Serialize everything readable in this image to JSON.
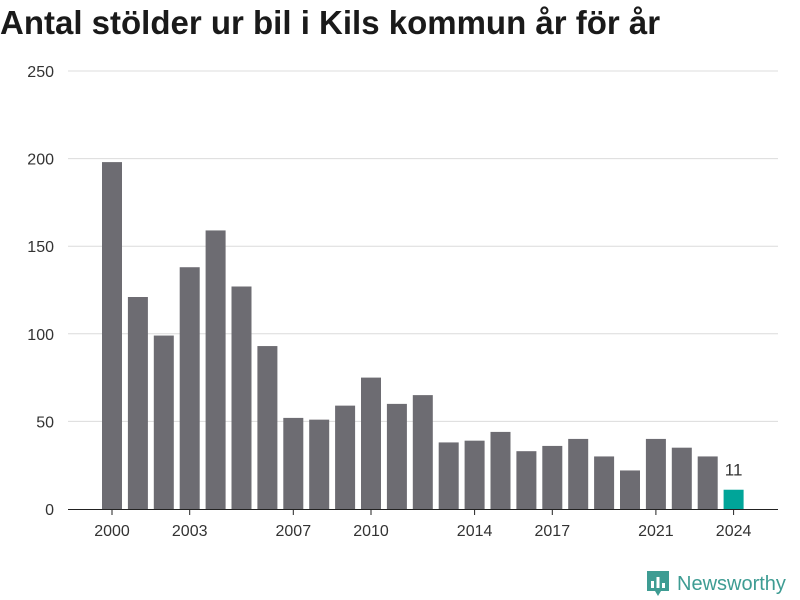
{
  "title": "Antal stölder ur bil i Kils kommun år för år",
  "brand": {
    "name": "Newsworthy",
    "icon": "bar-chart-logo-icon",
    "color": "#3e9c93"
  },
  "chart_data": {
    "type": "bar",
    "title": "Antal stölder ur bil i Kils kommun år för år",
    "xlabel": "",
    "ylabel": "",
    "ylim": [
      0,
      250
    ],
    "yticks": [
      0,
      50,
      100,
      150,
      200,
      250
    ],
    "xticks": [
      "2000",
      "2003",
      "2007",
      "2010",
      "2014",
      "2017",
      "2021",
      "2024"
    ],
    "grid": true,
    "bar_color": "#6d6c72",
    "highlight_color": "#00a599",
    "categories": [
      "2000",
      "2001",
      "2002",
      "2003",
      "2004",
      "2005",
      "2006",
      "2007",
      "2008",
      "2009",
      "2010",
      "2011",
      "2012",
      "2013",
      "2014",
      "2015",
      "2016",
      "2017",
      "2018",
      "2019",
      "2020",
      "2021",
      "2022",
      "2023",
      "2024"
    ],
    "values": [
      198,
      121,
      99,
      138,
      159,
      127,
      93,
      52,
      51,
      59,
      75,
      60,
      65,
      38,
      39,
      44,
      33,
      36,
      40,
      30,
      22,
      40,
      35,
      30,
      11
    ],
    "highlight": {
      "category": "2024",
      "label": "11"
    }
  }
}
